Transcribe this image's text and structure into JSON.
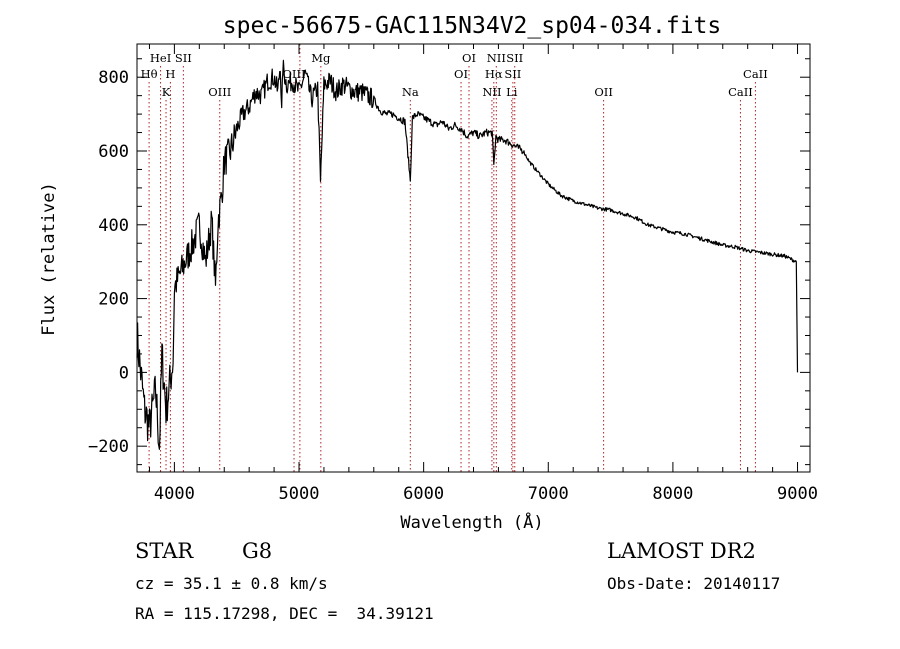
{
  "chart_data": {
    "type": "line",
    "title": "spec-56675-GAC115N34V2_sp04-034.fits",
    "xlabel": "Wavelength (Å)",
    "ylabel": "Flux (relative)",
    "xlim": [
      3700,
      9100
    ],
    "ylim": [
      -270,
      890
    ],
    "xticks": [
      4000,
      5000,
      6000,
      7000,
      8000,
      9000
    ],
    "yticks": [
      -200,
      0,
      200,
      400,
      600,
      800
    ],
    "grid": false,
    "line_color": "#000000",
    "marker_color": "#b22222",
    "series": [
      {
        "x": [
          3700,
          3760,
          3800,
          3850,
          3880,
          3900,
          3933,
          3968,
          3990,
          4000,
          4050,
          4100,
          4150,
          4200,
          4250,
          4300,
          4330,
          4350,
          4380,
          4400,
          4450,
          4500,
          4550,
          4600,
          4650,
          4700,
          4750,
          4800,
          4830,
          4850,
          4861,
          4870,
          4900,
          4950,
          5000,
          5050,
          5100,
          5150,
          5172,
          5200,
          5250,
          5300,
          5350,
          5400,
          5450,
          5500,
          5550,
          5600,
          5650,
          5700,
          5750,
          5800,
          5850,
          5893,
          5910,
          5950,
          6000,
          6050,
          6100,
          6150,
          6200,
          6250,
          6300,
          6350,
          6400,
          6450,
          6500,
          6550,
          6563,
          6580,
          6600,
          6650,
          6700,
          6750,
          6800,
          6850,
          6900,
          7000,
          7100,
          7200,
          7300,
          7400,
          7500,
          7600,
          7700,
          7800,
          7900,
          8000,
          8100,
          8200,
          8300,
          8400,
          8500,
          8600,
          8700,
          8800,
          8900,
          8990,
          9000
        ],
        "y": [
          100,
          -100,
          -150,
          -50,
          -200,
          50,
          -100,
          -20,
          40,
          230,
          270,
          310,
          350,
          400,
          300,
          410,
          230,
          410,
          480,
          570,
          600,
          660,
          700,
          720,
          760,
          750,
          790,
          800,
          760,
          840,
          700,
          830,
          780,
          790,
          760,
          810,
          740,
          770,
          510,
          780,
          790,
          760,
          780,
          770,
          760,
          760,
          750,
          740,
          710,
          700,
          700,
          690,
          680,
          520,
          690,
          700,
          690,
          680,
          670,
          680,
          660,
          670,
          660,
          640,
          650,
          640,
          650,
          650,
          560,
          640,
          630,
          630,
          620,
          610,
          600,
          570,
          550,
          510,
          480,
          465,
          455,
          445,
          440,
          430,
          420,
          400,
          390,
          380,
          375,
          365,
          355,
          345,
          340,
          330,
          325,
          320,
          315,
          300,
          0
        ]
      }
    ],
    "lines": [
      {
        "wl": 3797,
        "name": "Hθ",
        "row": 2
      },
      {
        "wl": 3889,
        "name": "HeI",
        "row": 1
      },
      {
        "wl": 3933,
        "name": "K",
        "row": 3
      },
      {
        "wl": 3968,
        "name": "H",
        "row": 2
      },
      {
        "wl": 4072,
        "name": "SII",
        "row": 1
      },
      {
        "wl": 4364,
        "name": "OIII",
        "row": 3
      },
      {
        "wl": 4960,
        "name": "OIII",
        "row": 2
      },
      {
        "wl": 5007,
        "name": "",
        "row": 2
      },
      {
        "wl": 5175,
        "name": "Mg",
        "row": 1
      },
      {
        "wl": 5893,
        "name": "Na",
        "row": 3
      },
      {
        "wl": 6300,
        "name": "OI",
        "row": 2
      },
      {
        "wl": 6364,
        "name": "OI",
        "row": 1
      },
      {
        "wl": 6548,
        "name": "NII",
        "row": 3
      },
      {
        "wl": 6563,
        "name": "Hα",
        "row": 2
      },
      {
        "wl": 6583,
        "name": "NII",
        "row": 1
      },
      {
        "wl": 6707,
        "name": "Li",
        "row": 3
      },
      {
        "wl": 6716,
        "name": "SII",
        "row": 2
      },
      {
        "wl": 6731,
        "name": "SII",
        "row": 1
      },
      {
        "wl": 7444,
        "name": "OII",
        "row": 3
      },
      {
        "wl": 8542,
        "name": "CaII",
        "row": 3
      },
      {
        "wl": 8662,
        "name": "CaII",
        "row": 2
      }
    ]
  },
  "info": {
    "object_class": "STAR",
    "subclass": "G8",
    "survey": "LAMOST DR2",
    "redshift": "cz = 35.1 ± 0.8 km/s",
    "obs_date": "Obs-Date: 20140117",
    "coords": "RA = 115.17298, DEC =  34.39121"
  }
}
